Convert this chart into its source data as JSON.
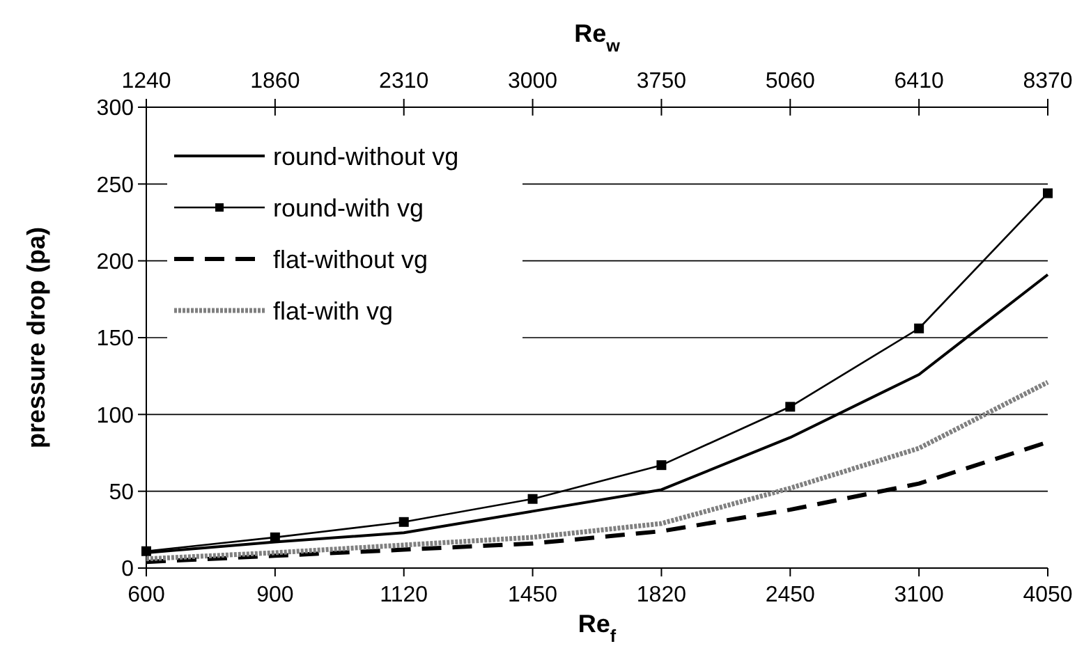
{
  "chart_data": {
    "type": "line",
    "xlabel": "Re$_{f}$",
    "ylabel": "pressure drop (pa)",
    "x2label": "Re$_{w}$",
    "categories": [
      "600",
      "900",
      "1120",
      "1450",
      "1820",
      "2450",
      "3100",
      "4050"
    ],
    "annotations": [
      "1240",
      "1860",
      "2310",
      "3000",
      "3750",
      "5060",
      "6410",
      "8370"
    ],
    "ylim": [
      0,
      300
    ],
    "yticks": [
      0,
      50,
      100,
      150,
      200,
      250,
      300
    ],
    "grid": "y",
    "legend": "top left",
    "series": [
      {
        "name": "round-without vg",
        "color": "#000000",
        "line_style": "solid",
        "marker": "none",
        "values": [
          10,
          17,
          23,
          37,
          51,
          85,
          126,
          191
        ]
      },
      {
        "name": "round-with vg",
        "color": "#000000",
        "line_style": "solid",
        "marker": "square",
        "values": [
          11,
          20,
          30,
          45,
          67,
          105,
          156,
          244
        ]
      },
      {
        "name": "flat-without vg",
        "color": "#000000",
        "line_style": "dashed",
        "marker": "none",
        "values": [
          4,
          8,
          12,
          16,
          24,
          38,
          55,
          82
        ]
      },
      {
        "name": "flat-with vg",
        "color": "#808080",
        "line_style": "dotted",
        "marker": "none",
        "values": [
          6,
          10,
          15,
          20,
          29,
          52,
          78,
          121
        ]
      }
    ]
  }
}
